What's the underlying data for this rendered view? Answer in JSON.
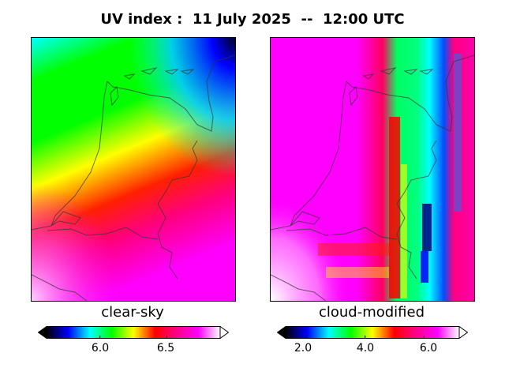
{
  "title": "UV index :  11 July 2025  --  12:00 UTC",
  "panels": [
    {
      "label": "clear-sky",
      "colorbar": {
        "ticks": [
          6.0,
          6.5
        ],
        "tick_labels": [
          "6.0",
          "6.5"
        ],
        "range": [
          5.6,
          6.9
        ],
        "extend": "both",
        "colors": [
          "#000000",
          "#0000ff",
          "#00ffff",
          "#00ff00",
          "#ffff00",
          "#ff0000",
          "#ff0088",
          "#ff00ff",
          "#ffffff"
        ]
      }
    },
    {
      "label": "cloud-modified",
      "colorbar": {
        "ticks": [
          2.0,
          4.0,
          6.0
        ],
        "tick_labels": [
          "2.0",
          "4.0",
          "6.0"
        ],
        "range": [
          1.3,
          7.2
        ],
        "extend": "both",
        "colors": [
          "#000000",
          "#0000ff",
          "#00ffff",
          "#00ff00",
          "#ffff00",
          "#ff0000",
          "#ff0088",
          "#ff00ff",
          "#ffffff"
        ]
      }
    }
  ]
}
